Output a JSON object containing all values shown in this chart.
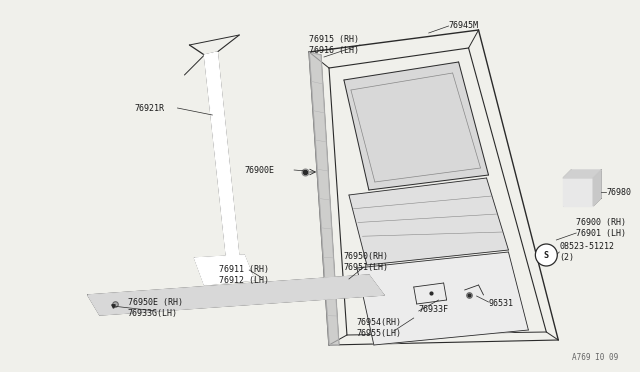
{
  "background_color": "#f0f0eb",
  "figure_code": "A769 I0 09",
  "line_color": "#2a2a2a",
  "text_color": "#1a1a1a",
  "font_size": 6.0,
  "parts_labels": {
    "76915_16": "76915 (RH)\n76916 (LH)",
    "76945M": "76945M",
    "76921R": "76921R",
    "76900E": "76900E",
    "76980": "76980",
    "76900_01": "76900 (RH)\n76901 (LH)",
    "76911_12": "76911 (RH)\n76912 (LH)",
    "76933F": "76933F",
    "76954_55": "76954(RH)\n76955(LH)",
    "96531": "96531",
    "08523": "08523-51212\n(2)",
    "76950_51": "76950(RH)\n76951(LH)",
    "76950E_33G": "76950E (RH)\n76933G(LH)"
  }
}
